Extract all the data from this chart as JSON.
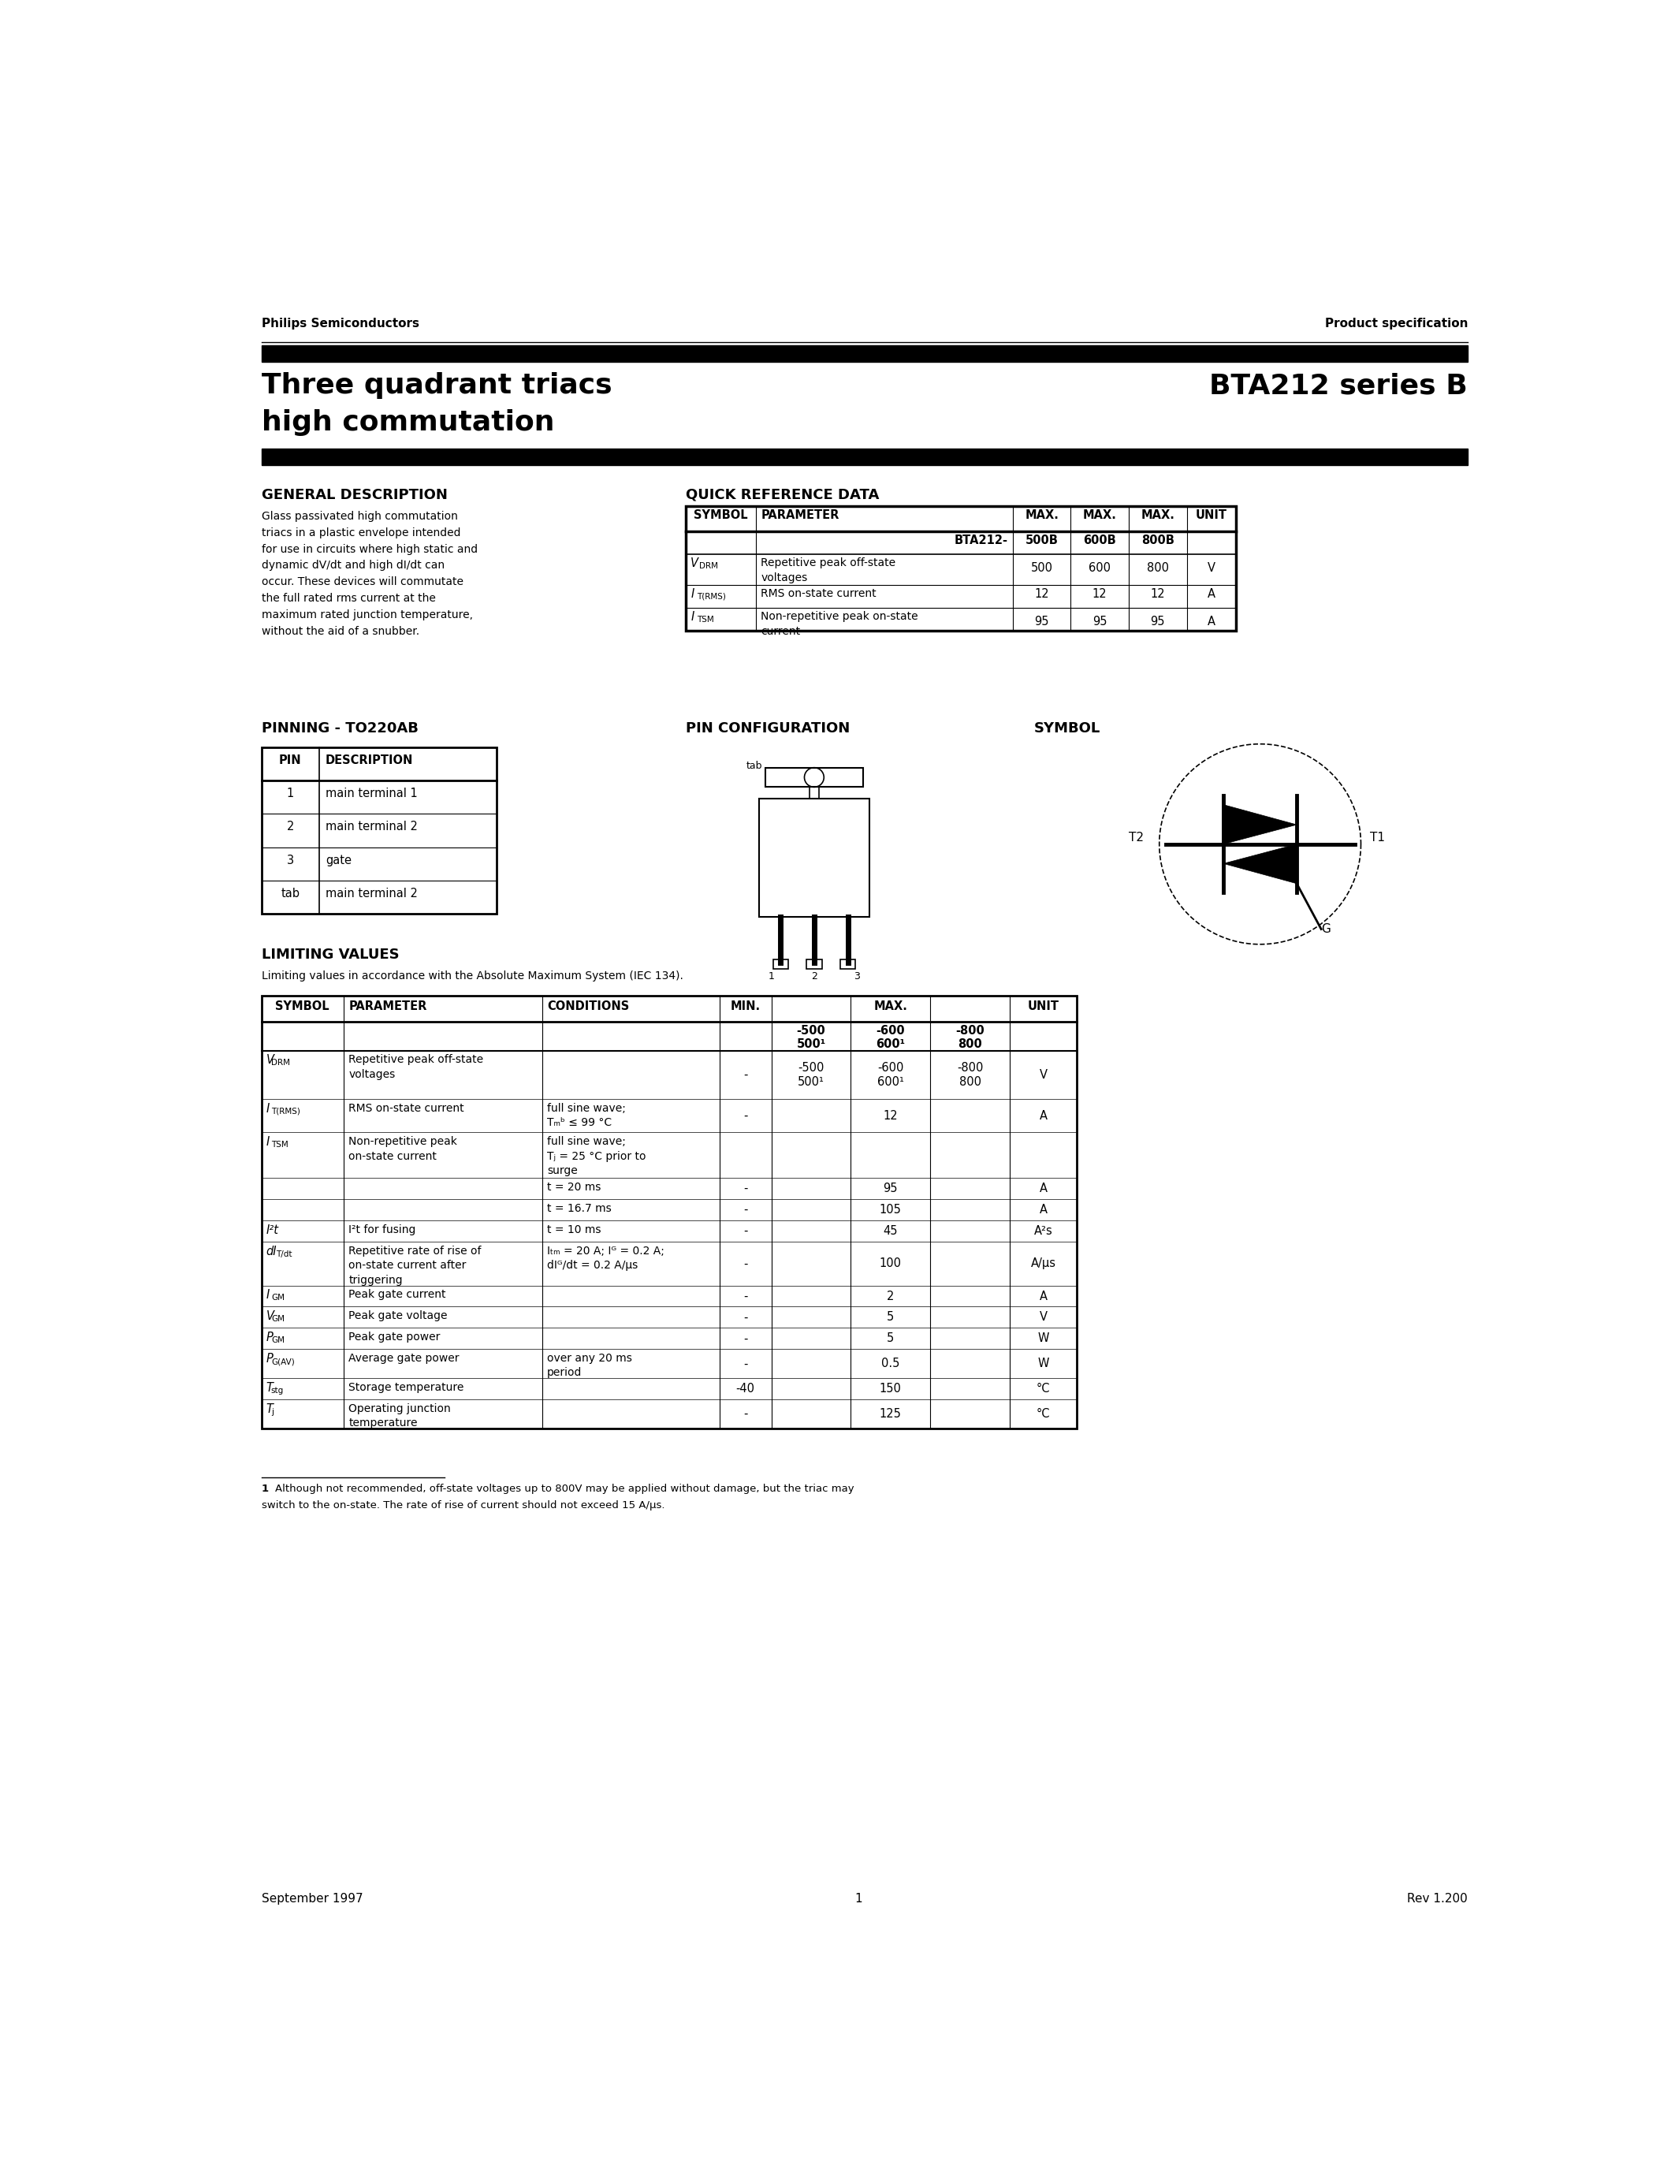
{
  "page_width": 21.25,
  "page_height": 27.5,
  "bg_color": "#ffffff",
  "header_left": "Philips Semiconductors",
  "header_right": "Product specification",
  "title_left_line1": "Three quadrant triacs",
  "title_left_line2": "high commutation",
  "title_right": "BTA212 series B",
  "section1_title": "GENERAL DESCRIPTION",
  "section2_title": "QUICK REFERENCE DATA",
  "general_desc_lines": [
    "Glass passivated high commutation",
    "triacs in a plastic envelope intended",
    "for use in circuits where high static and",
    "dynamic dV/dt and high dI/dt can",
    "occur. These devices will commutate",
    "the full rated rms current at the",
    "maximum rated junction temperature,",
    "without the aid of a snubber."
  ],
  "pinning_title": "PINNING - TO220AB",
  "pin_config_title": "PIN CONFIGURATION",
  "symbol_title": "SYMBOL",
  "pin_table": [
    [
      "PIN",
      "DESCRIPTION"
    ],
    [
      "1",
      "main terminal 1"
    ],
    [
      "2",
      "main terminal 2"
    ],
    [
      "3",
      "gate"
    ],
    [
      "tab",
      "main terminal 2"
    ]
  ],
  "limiting_title": "LIMITING VALUES",
  "limiting_subtitle": "Limiting values in accordance with the Absolute Maximum System (IEC 134).",
  "footnote_num": "1",
  "footnote_text": "  Although not recommended, off-state voltages up to 800V may be applied without damage, but the triac may\nswitch to the on-state. The rate of rise of current should not exceed 15 A/μs.",
  "footer_left": "September 1997",
  "footer_center": "1",
  "footer_right": "Rev 1.200"
}
